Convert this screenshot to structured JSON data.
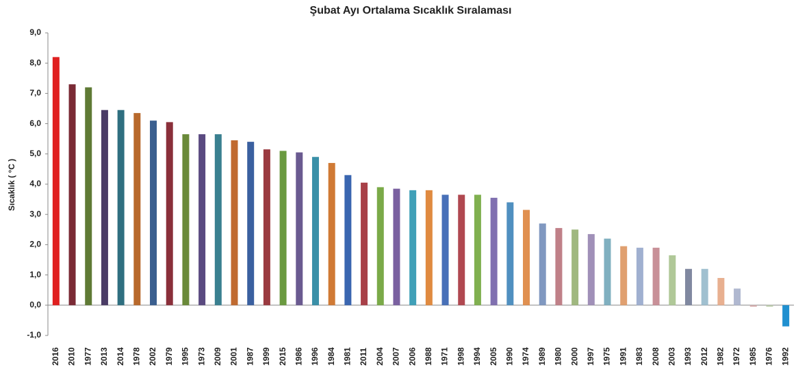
{
  "chart_data": {
    "type": "bar",
    "title": "Şubat Ayı Ortalama Sıcaklık Sıralaması",
    "y_label": "Sıcaklık ( °C )",
    "categories": [
      "2016",
      "2010",
      "1977",
      "2013",
      "2014",
      "1978",
      "2002",
      "1979",
      "1995",
      "1973",
      "2009",
      "2001",
      "1987",
      "1999",
      "2015",
      "1986",
      "1996",
      "1984",
      "1981",
      "2011",
      "2004",
      "2007",
      "2006",
      "1988",
      "1971",
      "1998",
      "1994",
      "2005",
      "1990",
      "1974",
      "1989",
      "1980",
      "2000",
      "1997",
      "1975",
      "1991",
      "1983",
      "2008",
      "2003",
      "1993",
      "2012",
      "1982",
      "1972",
      "1985",
      "1976",
      "1992"
    ],
    "values": [
      8.2,
      7.3,
      7.2,
      6.45,
      6.45,
      6.35,
      6.1,
      6.05,
      5.65,
      5.65,
      5.65,
      5.45,
      5.4,
      5.15,
      5.1,
      5.05,
      4.9,
      4.7,
      4.3,
      4.05,
      3.9,
      3.85,
      3.8,
      3.8,
      3.65,
      3.65,
      3.65,
      3.55,
      3.4,
      3.15,
      2.7,
      2.55,
      2.5,
      2.35,
      2.2,
      1.95,
      1.9,
      1.9,
      1.65,
      1.2,
      1.2,
      0.9,
      0.55,
      -0.05,
      -0.05,
      -0.7
    ],
    "colors": [
      "#e02020",
      "#7a2a35",
      "#5f7a35",
      "#4a3c66",
      "#2f6f80",
      "#b8692c",
      "#3a5f8f",
      "#8a2f3a",
      "#6a8a3a",
      "#5a4a80",
      "#3a8090",
      "#c06a30",
      "#3a60a0",
      "#9a3a40",
      "#6a9a40",
      "#6a5a90",
      "#3a90a8",
      "#d07a35",
      "#3a66b0",
      "#a84048",
      "#7aaa48",
      "#7a60a0",
      "#40a0b8",
      "#e08a40",
      "#4870b8",
      "#b04850",
      "#80b050",
      "#8070b0",
      "#5090c0",
      "#e09050",
      "#8098c0",
      "#c08088",
      "#a0b880",
      "#a090b8",
      "#80b0c0",
      "#e0a070",
      "#a0b0d0",
      "#c89098",
      "#b0c898",
      "#8088a0",
      "#a0c0d0",
      "#e8b090",
      "#b0b8d0",
      "#d8b0b0",
      "#c0d0b0",
      "#2090d0"
    ],
    "ylim": [
      -1,
      9
    ],
    "yticks": [
      {
        "value": -1,
        "label": "-1,0"
      },
      {
        "value": 0,
        "label": "0,0"
      },
      {
        "value": 1,
        "label": "1,0"
      },
      {
        "value": 2,
        "label": "2,0"
      },
      {
        "value": 3,
        "label": "3,0"
      },
      {
        "value": 4,
        "label": "4,0"
      },
      {
        "value": 5,
        "label": "5,0"
      },
      {
        "value": 6,
        "label": "6,0"
      },
      {
        "value": 7,
        "label": "7,0"
      },
      {
        "value": 8,
        "label": "8,0"
      },
      {
        "value": 9,
        "label": "9,0"
      }
    ]
  }
}
